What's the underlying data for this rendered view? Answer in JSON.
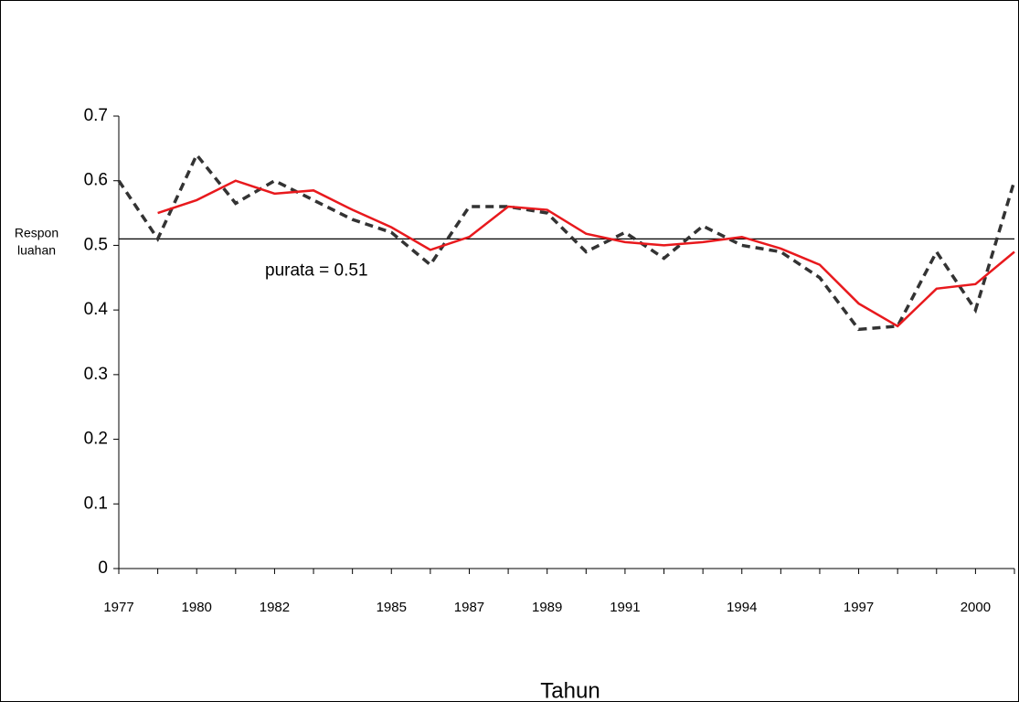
{
  "chart_data": {
    "type": "line",
    "categories": [
      "1977",
      null,
      "1980",
      null,
      "1982",
      null,
      null,
      "1985",
      null,
      "1987",
      null,
      "1989",
      null,
      "1991",
      null,
      null,
      "1994",
      null,
      null,
      "1997",
      null,
      null,
      "2000",
      null
    ],
    "series": [
      {
        "color": "#333333",
        "dashed": true,
        "values": [
          0.6,
          0.51,
          0.64,
          0.565,
          0.6,
          0.57,
          0.54,
          0.52,
          0.47,
          0.56,
          0.56,
          0.55,
          0.49,
          0.52,
          0.48,
          0.53,
          0.5,
          0.49,
          0.45,
          0.37,
          0.375,
          0.49,
          0.4,
          0.6
        ]
      },
      {
        "color": "#e8191d",
        "dashed": false,
        "values": [
          null,
          0.55,
          0.57,
          0.6,
          0.58,
          0.585,
          0.555,
          0.528,
          0.493,
          0.513,
          0.56,
          0.555,
          0.518,
          0.505,
          0.5,
          0.505,
          0.513,
          0.495,
          0.47,
          0.41,
          0.375,
          0.433,
          0.44,
          0.49
        ]
      }
    ],
    "reference_line": {
      "value": 0.51,
      "label": "purata = 0.51",
      "color": "#000000"
    },
    "ylim": [
      0,
      0.7
    ],
    "yticks": [
      0,
      0.1,
      0.2,
      0.3,
      0.4,
      0.5,
      0.6,
      0.7
    ],
    "ylabel_lines": [
      "Respon",
      "luahan"
    ],
    "xlabel": "Tahun",
    "grid": false
  }
}
